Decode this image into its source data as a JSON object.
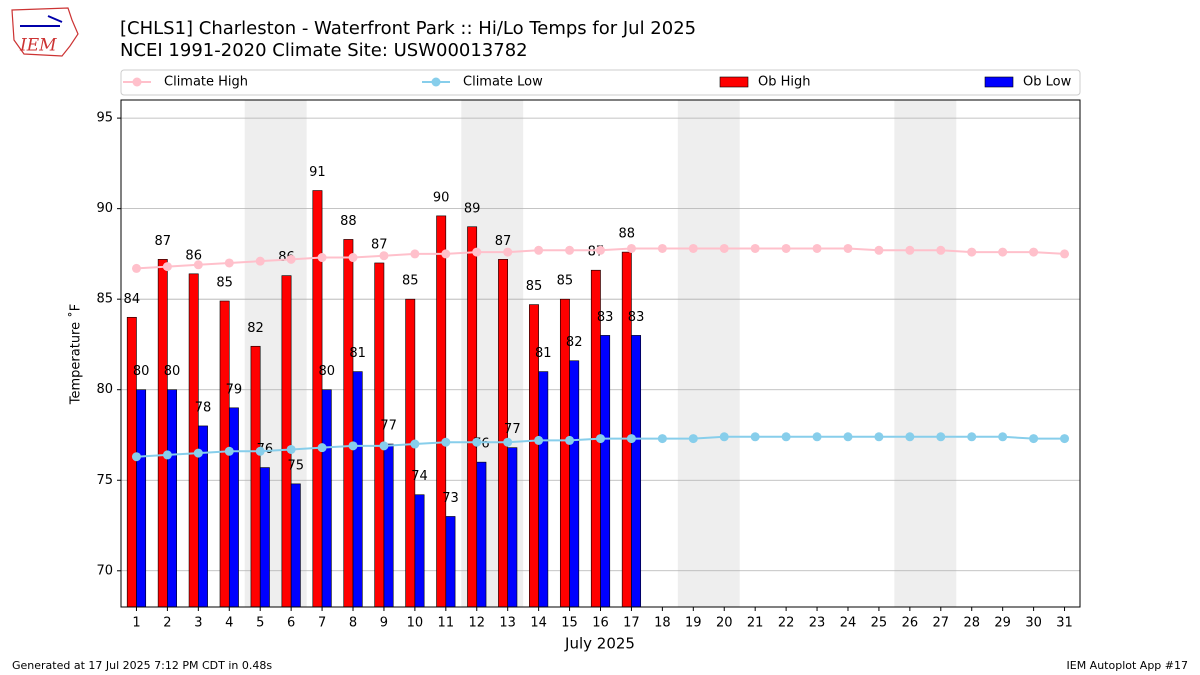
{
  "chart_data": {
    "type": "bar_line",
    "title": "[CHLS1] Charleston - Waterfront Park :: Hi/Lo Temps for Jul 2025",
    "subtitle": "NCEI 1991-2020 Climate Site: USW00013782",
    "logo": "IEM",
    "x_label": "July 2025",
    "y_label": "Temperature ˚F",
    "footer_left": "Generated at 17 Jul 2025 7:12 PM CDT in 0.48s",
    "footer_right": "IEM Autoplot App #17",
    "x": [
      1,
      2,
      3,
      4,
      5,
      6,
      7,
      8,
      9,
      10,
      11,
      12,
      13,
      14,
      15,
      16,
      17,
      18,
      19,
      20,
      21,
      22,
      23,
      24,
      25,
      26,
      27,
      28,
      29,
      30,
      31
    ],
    "xlim": [
      0.5,
      31.5
    ],
    "xticks": [
      1,
      2,
      3,
      4,
      5,
      6,
      7,
      8,
      9,
      10,
      11,
      12,
      13,
      14,
      15,
      16,
      17,
      18,
      19,
      20,
      21,
      22,
      23,
      24,
      25,
      26,
      27,
      28,
      29,
      30,
      31
    ],
    "ylim": [
      68,
      96
    ],
    "yticks": [
      70,
      75,
      80,
      85,
      90,
      95
    ],
    "grid": true,
    "weekend_bands": [
      [
        4.5,
        6.5
      ],
      [
        11.5,
        13.5
      ],
      [
        18.5,
        20.5
      ],
      [
        25.5,
        27.5
      ]
    ],
    "series": [
      {
        "name": "Climate High",
        "kind": "line",
        "color": "#ffc0cb",
        "values": [
          86.7,
          86.8,
          86.9,
          87.0,
          87.1,
          87.2,
          87.3,
          87.3,
          87.4,
          87.5,
          87.5,
          87.6,
          87.6,
          87.7,
          87.7,
          87.7,
          87.8,
          87.8,
          87.8,
          87.8,
          87.8,
          87.8,
          87.8,
          87.8,
          87.7,
          87.7,
          87.7,
          87.6,
          87.6,
          87.6,
          87.5
        ]
      },
      {
        "name": "Climate Low",
        "kind": "line",
        "color": "#87ceeb",
        "values": [
          76.3,
          76.4,
          76.5,
          76.6,
          76.6,
          76.7,
          76.8,
          76.9,
          76.9,
          77.0,
          77.1,
          77.1,
          77.1,
          77.2,
          77.2,
          77.3,
          77.3,
          77.3,
          77.3,
          77.4,
          77.4,
          77.4,
          77.4,
          77.4,
          77.4,
          77.4,
          77.4,
          77.4,
          77.4,
          77.3,
          77.3
        ]
      },
      {
        "name": "Ob High",
        "kind": "bar",
        "color": "#ff0000",
        "values": [
          84.0,
          87.2,
          86.4,
          84.9,
          82.4,
          86.3,
          91.0,
          88.3,
          87.0,
          85.0,
          89.6,
          89.0,
          87.2,
          84.7,
          85.0,
          86.6,
          87.6,
          null,
          null,
          null,
          null,
          null,
          null,
          null,
          null,
          null,
          null,
          null,
          null,
          null,
          null
        ],
        "value_labels": [
          "84",
          "87",
          "86",
          "85",
          "82",
          "86",
          "91",
          "88",
          "87",
          "85",
          "90",
          "89",
          "87",
          "85",
          "85",
          "87",
          "88",
          null,
          null,
          null,
          null,
          null,
          null,
          null,
          null,
          null,
          null,
          null,
          null,
          null,
          null
        ]
      },
      {
        "name": "Ob Low",
        "kind": "bar",
        "color": "#0000ff",
        "values": [
          80.0,
          80.0,
          78.0,
          79.0,
          75.7,
          74.8,
          80.0,
          81.0,
          77.0,
          74.2,
          73.0,
          76.0,
          76.8,
          81.0,
          81.6,
          83.0,
          83.0,
          null,
          null,
          null,
          null,
          null,
          null,
          null,
          null,
          null,
          null,
          null,
          null,
          null,
          null
        ],
        "value_labels": [
          "80",
          "80",
          "78",
          "79",
          "76",
          "75",
          "80",
          "81",
          "77",
          "74",
          "73",
          "76",
          "77",
          "81",
          "82",
          "83",
          "83",
          null,
          null,
          null,
          null,
          null,
          null,
          null,
          null,
          null,
          null,
          null,
          null,
          null,
          null
        ]
      }
    ]
  }
}
